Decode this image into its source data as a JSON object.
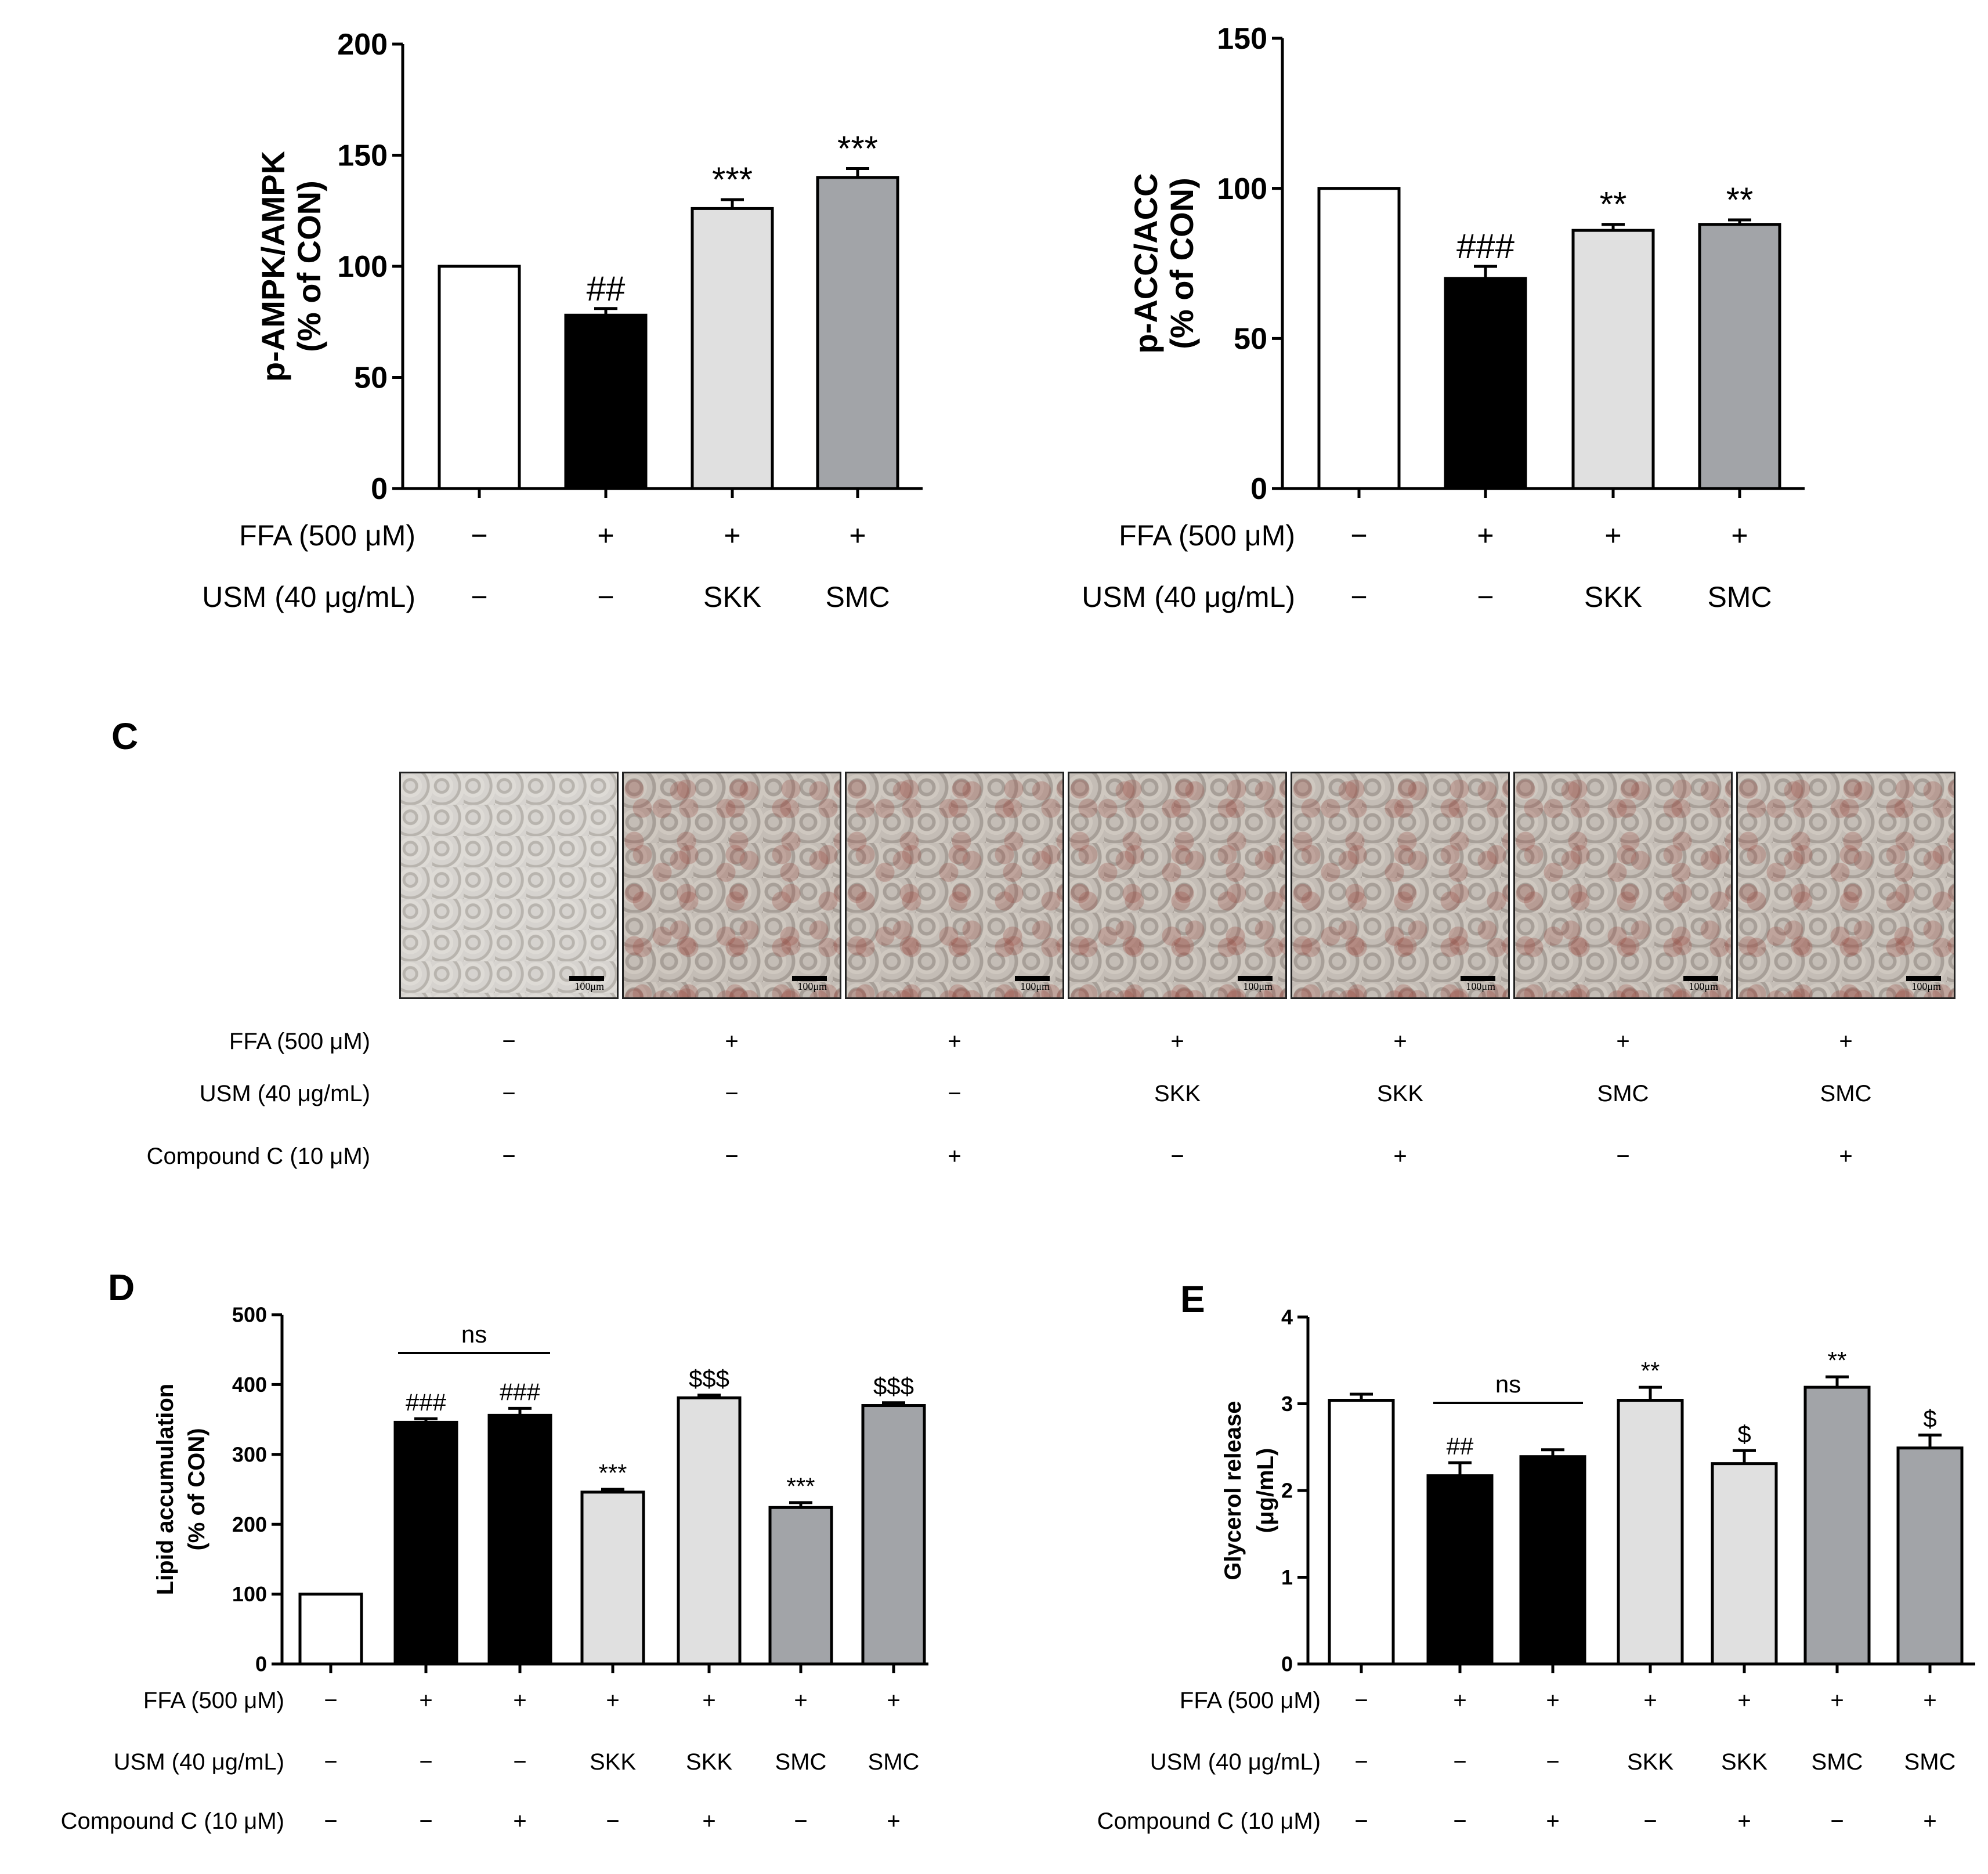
{
  "panels": {
    "A": {
      "ylabel_line1": "p-AMPK/AMPK",
      "ylabel_line2": "(% of CON)",
      "yticks": [
        "0",
        "50",
        "100",
        "150",
        "200"
      ],
      "row_labels": [
        "FFA (500 μM)",
        "USM (40 μg/mL)"
      ],
      "rows": [
        [
          "−",
          "+",
          "+",
          "+"
        ],
        [
          "−",
          "−",
          "SKK",
          "SMC"
        ]
      ]
    },
    "B": {
      "ylabel_line1": "p-ACC/ACC",
      "ylabel_line2": "(% of CON)",
      "yticks": [
        "0",
        "50",
        "100",
        "150"
      ],
      "row_labels": [
        "FFA (500 μM)",
        "USM (40 μg/mL)"
      ],
      "rows": [
        [
          "−",
          "+",
          "+",
          "+"
        ],
        [
          "−",
          "−",
          "SKK",
          "SMC"
        ]
      ]
    },
    "C": {
      "label": "C",
      "scale_label": "100μm",
      "row_labels": [
        "FFA (500 μM)",
        "USM (40 μg/mL)",
        "Compound C (10 μM)"
      ],
      "rows": [
        [
          "−",
          "+",
          "+",
          "+",
          "+",
          "+",
          "+"
        ],
        [
          "−",
          "−",
          "−",
          "SKK",
          "SKK",
          "SMC",
          "SMC"
        ],
        [
          "−",
          "−",
          "+",
          "−",
          "+",
          "−",
          "+"
        ]
      ]
    },
    "D": {
      "label": "D",
      "ylabel_line1": "Lipid accumulation",
      "ylabel_line2": "(% of CON)",
      "yticks": [
        "0",
        "100",
        "200",
        "300",
        "400",
        "500"
      ],
      "row_labels": [
        "FFA (500 μM)",
        "USM (40 μg/mL)",
        "Compound C (10 μM)"
      ],
      "rows": [
        [
          "−",
          "+",
          "+",
          "+",
          "+",
          "+",
          "+"
        ],
        [
          "−",
          "−",
          "−",
          "SKK",
          "SKK",
          "SMC",
          "SMC"
        ],
        [
          "−",
          "−",
          "+",
          "−",
          "+",
          "−",
          "+"
        ]
      ],
      "ns_label": "ns"
    },
    "E": {
      "label": "E",
      "ylabel_line1": "Glycerol release",
      "ylabel_line2": "(μg/mL)",
      "yticks": [
        "0",
        "1",
        "2",
        "3",
        "4"
      ],
      "row_labels": [
        "FFA (500 μM)",
        "USM (40 μg/mL)",
        "Compound C (10 μM)"
      ],
      "rows": [
        [
          "−",
          "+",
          "+",
          "+",
          "+",
          "+",
          "+"
        ],
        [
          "−",
          "−",
          "−",
          "SKK",
          "SKK",
          "SMC",
          "SMC"
        ],
        [
          "−",
          "−",
          "+",
          "−",
          "+",
          "−",
          "+"
        ]
      ],
      "ns_label": "ns"
    }
  },
  "colors": {
    "white": "#ffffff",
    "black": "#000000",
    "light_gray": "#e0e0e0",
    "dark_gray": "#a2a4a8"
  },
  "chart_data": [
    {
      "type": "bar",
      "panel": "A",
      "ylabel": "p-AMPK/AMPK (% of CON)",
      "ylim": [
        0,
        200
      ],
      "categories": [
        "CON",
        "FFA",
        "FFA+SKK",
        "FFA+SMC"
      ],
      "values": [
        100,
        78,
        126,
        140
      ],
      "errors": [
        0,
        3,
        4,
        4
      ],
      "annotations": [
        "",
        "##",
        "***",
        "***"
      ],
      "fill": [
        "white",
        "black",
        "light_gray",
        "dark_gray"
      ]
    },
    {
      "type": "bar",
      "panel": "B",
      "ylabel": "p-ACC/ACC (% of CON)",
      "ylim": [
        0,
        150
      ],
      "categories": [
        "CON",
        "FFA",
        "FFA+SKK",
        "FFA+SMC"
      ],
      "values": [
        100,
        70,
        86,
        88
      ],
      "errors": [
        0,
        4,
        2,
        1.5
      ],
      "annotations": [
        "",
        "###",
        "**",
        "**"
      ],
      "fill": [
        "white",
        "black",
        "light_gray",
        "dark_gray"
      ]
    },
    {
      "type": "bar",
      "panel": "D",
      "ylabel": "Lipid accumulation (% of CON)",
      "ylim": [
        0,
        500
      ],
      "categories": [
        "CON",
        "FFA",
        "FFA+CC",
        "FFA+SKK",
        "FFA+SKK+CC",
        "FFA+SMC",
        "FFA+SMC+CC"
      ],
      "values": [
        100,
        346,
        356,
        246,
        381,
        224,
        370
      ],
      "errors": [
        0,
        5,
        10,
        4,
        4,
        7,
        4
      ],
      "annotations": [
        "",
        "###",
        "###",
        "***",
        "$$$",
        "***",
        "$$$"
      ],
      "fill": [
        "white",
        "black",
        "black",
        "light_gray",
        "light_gray",
        "dark_gray",
        "dark_gray"
      ]
    },
    {
      "type": "bar",
      "panel": "E",
      "ylabel": "Glycerol release (μg/mL)",
      "ylim": [
        0,
        4
      ],
      "categories": [
        "CON",
        "FFA",
        "FFA+CC",
        "FFA+SKK",
        "FFA+SKK+CC",
        "FFA+SMC",
        "FFA+SMC+CC"
      ],
      "values": [
        3.04,
        2.17,
        2.39,
        3.04,
        2.31,
        3.19,
        2.49
      ],
      "errors": [
        0.07,
        0.15,
        0.08,
        0.15,
        0.15,
        0.12,
        0.15
      ],
      "annotations": [
        "",
        "##",
        "",
        "**",
        "$",
        "**",
        "$"
      ],
      "fill": [
        "white",
        "black",
        "black",
        "light_gray",
        "light_gray",
        "dark_gray",
        "dark_gray"
      ]
    }
  ]
}
